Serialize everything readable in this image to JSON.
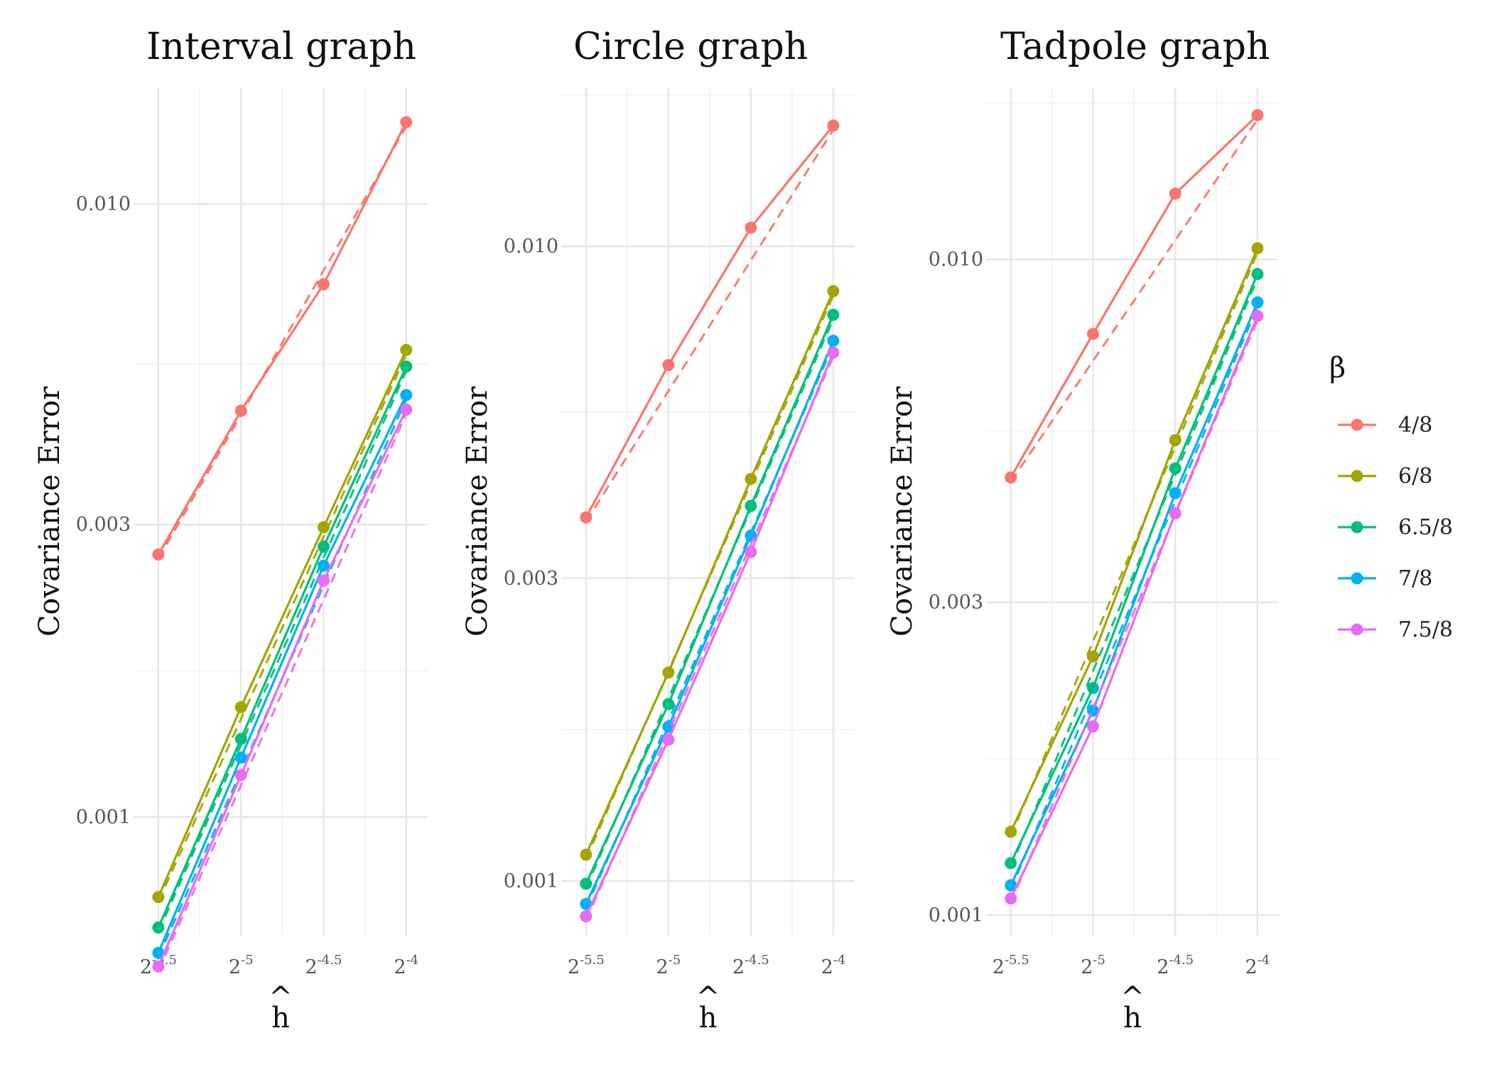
{
  "chart_data": {
    "type": "line",
    "scale": "log-log",
    "x_values": [
      -5.5,
      -5,
      -4.5,
      -4
    ],
    "x_tick_labels": [
      {
        "base": "2",
        "exp": "-5.5"
      },
      {
        "base": "2",
        "exp": "-5"
      },
      {
        "base": "2",
        "exp": "-4.5"
      },
      {
        "base": "2",
        "exp": "-4"
      }
    ],
    "xlabel": "h",
    "xlabel_hat": "^",
    "ylabel": "Covariance Error",
    "grid": true,
    "legend": {
      "title": "β",
      "position": "right",
      "entries": [
        "4/8",
        "6/8",
        "6.5/8",
        "7/8",
        "7.5/8"
      ]
    },
    "series_colors": [
      "#F8766D",
      "#A3A500",
      "#00BF7D",
      "#00B0F6",
      "#E76BF3"
    ],
    "panels": [
      {
        "title": "Interval graph",
        "y_ticks": [
          {
            "value": 0.001,
            "label": "0.001"
          },
          {
            "value": 0.003,
            "label": "0.003"
          },
          {
            "value": 0.01,
            "label": "0.010"
          }
        ],
        "ylim": [
          0.00064,
          0.0155
        ],
        "series": [
          {
            "name": "4/8",
            "values": [
              0.00268,
              0.0046,
              0.0074,
              0.0136
            ]
          },
          {
            "name": "6/8",
            "values": [
              0.00074,
              0.00151,
              0.00297,
              0.00578
            ]
          },
          {
            "name": "6.5/8",
            "values": [
              0.00066,
              0.00134,
              0.00276,
              0.00543
            ]
          },
          {
            "name": "7/8",
            "values": [
              0.0006,
              0.00125,
              0.00257,
              0.00488
            ]
          },
          {
            "name": "7.5/8",
            "values": [
              0.00057,
              0.00117,
              0.00243,
              0.00462
            ]
          }
        ]
      },
      {
        "title": "Circle graph",
        "y_ticks": [
          {
            "value": 0.001,
            "label": "0.001"
          },
          {
            "value": 0.003,
            "label": "0.003"
          },
          {
            "value": 0.01,
            "label": "0.010"
          }
        ],
        "ylim": [
          0.00082,
          0.0178
        ],
        "series": [
          {
            "name": "4/8",
            "values": [
              0.00374,
              0.0065,
              0.0107,
              0.0155
            ]
          },
          {
            "name": "6/8",
            "values": [
              0.0011,
              0.00213,
              0.0043,
              0.0085
            ]
          },
          {
            "name": "6.5/8",
            "values": [
              0.00099,
              0.0019,
              0.0039,
              0.0078
            ]
          },
          {
            "name": "7/8",
            "values": [
              0.00092,
              0.00175,
              0.0035,
              0.0071
            ]
          },
          {
            "name": "7.5/8",
            "values": [
              0.00088,
              0.00167,
              0.0033,
              0.0068
            ]
          }
        ]
      },
      {
        "title": "Tadpole graph",
        "y_ticks": [
          {
            "value": 0.001,
            "label": "0.001"
          },
          {
            "value": 0.003,
            "label": "0.003"
          },
          {
            "value": 0.01,
            "label": "0.010"
          }
        ],
        "ylim": [
          0.00093,
          0.0183
        ],
        "series": [
          {
            "name": "4/8",
            "values": [
              0.00465,
              0.0077,
              0.0126,
              0.0166
            ]
          },
          {
            "name": "6/8",
            "values": [
              0.00134,
              0.00248,
              0.0053,
              0.0104
            ]
          },
          {
            "name": "6.5/8",
            "values": [
              0.0012,
              0.00222,
              0.0048,
              0.0095
            ]
          },
          {
            "name": "7/8",
            "values": [
              0.00111,
              0.00205,
              0.0044,
              0.0086
            ]
          },
          {
            "name": "7.5/8",
            "values": [
              0.00106,
              0.00194,
              0.0041,
              0.0082
            ]
          }
        ]
      }
    ]
  }
}
